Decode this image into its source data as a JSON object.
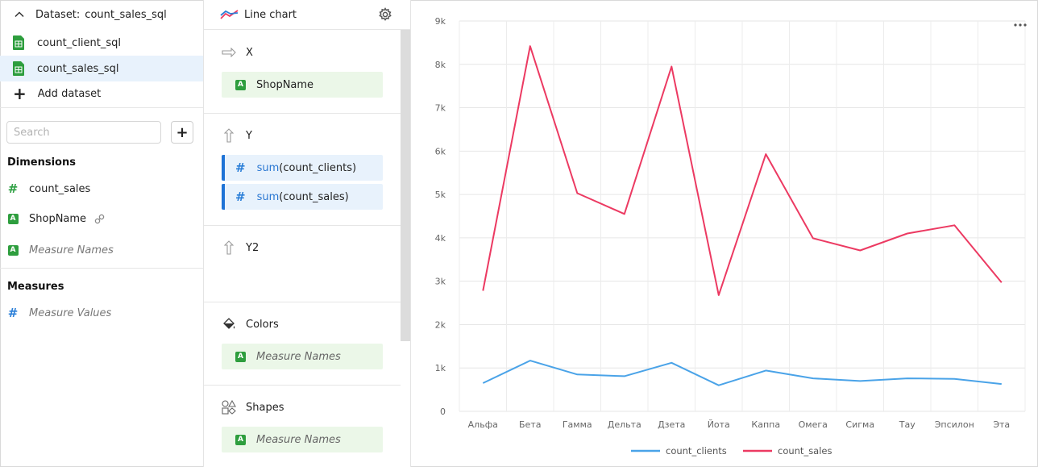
{
  "dataset_panel": {
    "header_label": "Dataset:",
    "header_name": "count_sales_sql",
    "datasets": [
      {
        "name": "count_client_sql",
        "active": false
      },
      {
        "name": "count_sales_sql",
        "active": true
      }
    ],
    "add_dataset_label": "Add dataset",
    "search_placeholder": "Search",
    "dimensions_title": "Dimensions",
    "dimensions": [
      {
        "label": "count_sales",
        "type": "number"
      },
      {
        "label": "ShopName",
        "type": "string",
        "linked": true
      },
      {
        "label": "Measure Names",
        "type": "string",
        "italic": true
      }
    ],
    "measures_title": "Measures",
    "measures": [
      {
        "label": "Measure Values",
        "type": "number",
        "italic": true
      }
    ]
  },
  "config_panel": {
    "chart_type": "Line chart",
    "sections": {
      "x": {
        "title": "X",
        "fields": [
          "ShopName"
        ]
      },
      "y": {
        "title": "Y",
        "fields": [
          {
            "fn": "sum",
            "arg": "(count_clients)"
          },
          {
            "fn": "sum",
            "arg": "(count_sales)"
          }
        ]
      },
      "y2": {
        "title": "Y2"
      },
      "colors": {
        "title": "Colors",
        "fields": [
          "Measure Names"
        ]
      },
      "shapes": {
        "title": "Shapes",
        "fields": [
          "Measure Names"
        ]
      }
    }
  },
  "colors": {
    "accent_blue": "#1e73d6",
    "series_clients": "#4aa3e8",
    "series_sales": "#ec3a62",
    "dimension_green": "#2e9e3e"
  },
  "chart_data": {
    "type": "line",
    "categories": [
      "Альфа",
      "Бета",
      "Гамма",
      "Дельта",
      "Дзета",
      "Йота",
      "Каппа",
      "Омега",
      "Сигма",
      "Тау",
      "Эпсилон",
      "Эта"
    ],
    "series": [
      {
        "name": "count_clients",
        "values": [
          650,
          1170,
          850,
          810,
          1120,
          600,
          940,
          760,
          700,
          760,
          750,
          630
        ]
      },
      {
        "name": "count_sales",
        "values": [
          2780,
          8420,
          5030,
          4550,
          7950,
          2680,
          5930,
          3990,
          3710,
          4100,
          4290,
          2970
        ]
      }
    ],
    "y_ticks": [
      "0",
      "1k",
      "2k",
      "3k",
      "4k",
      "5k",
      "6k",
      "7k",
      "8k",
      "9k"
    ],
    "ylim": [
      0,
      9000
    ],
    "grid": true,
    "legend_position": "bottom-center"
  }
}
